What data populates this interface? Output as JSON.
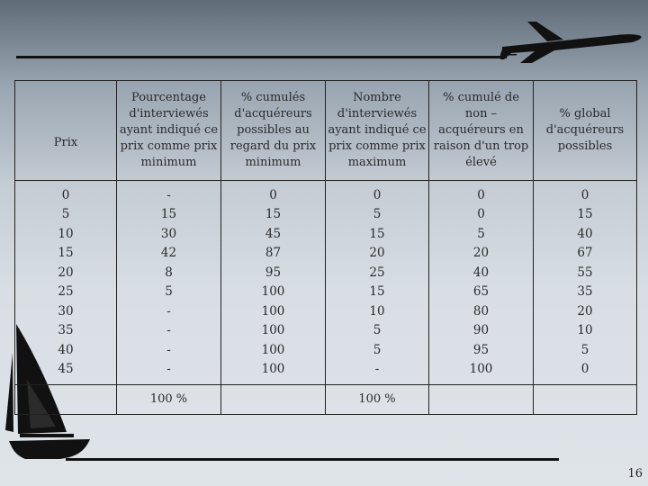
{
  "table": {
    "headers": [
      "Prix",
      "Pourcentage d'interviewés ayant indiqué ce prix comme prix minimum",
      "% cumulés d'acquéreurs possibles au regard du prix minimum",
      "Nombre d'interviewés ayant indiqué ce prix comme prix maximum",
      "% cumulé de non – acquéreurs en raison d'un trop élevé",
      "% global d'acquéreurs possibles"
    ],
    "columns": [
      [
        "0",
        "5",
        "10",
        "15",
        "20",
        "25",
        "30",
        "35",
        "40",
        "45"
      ],
      [
        "-",
        "15",
        "30",
        "42",
        "8",
        "5",
        "-",
        "-",
        "-",
        "-"
      ],
      [
        "0",
        "15",
        "45",
        "87",
        "95",
        "100",
        "100",
        "100",
        "100",
        "100"
      ],
      [
        "0",
        "5",
        "15",
        "20",
        "25",
        "15",
        "10",
        "5",
        "5",
        "-"
      ],
      [
        "0",
        "0",
        "5",
        "20",
        "40",
        "65",
        "80",
        "90",
        "95",
        "100"
      ],
      [
        "0",
        "15",
        "40",
        "67",
        "55",
        "35",
        "20",
        "10",
        "5",
        "0"
      ]
    ],
    "totals": [
      "",
      "100 %",
      "",
      "100 %",
      "",
      ""
    ]
  },
  "page_number": "16",
  "icons": {
    "plane": "airplane-icon",
    "boat": "sailboat-icon"
  }
}
